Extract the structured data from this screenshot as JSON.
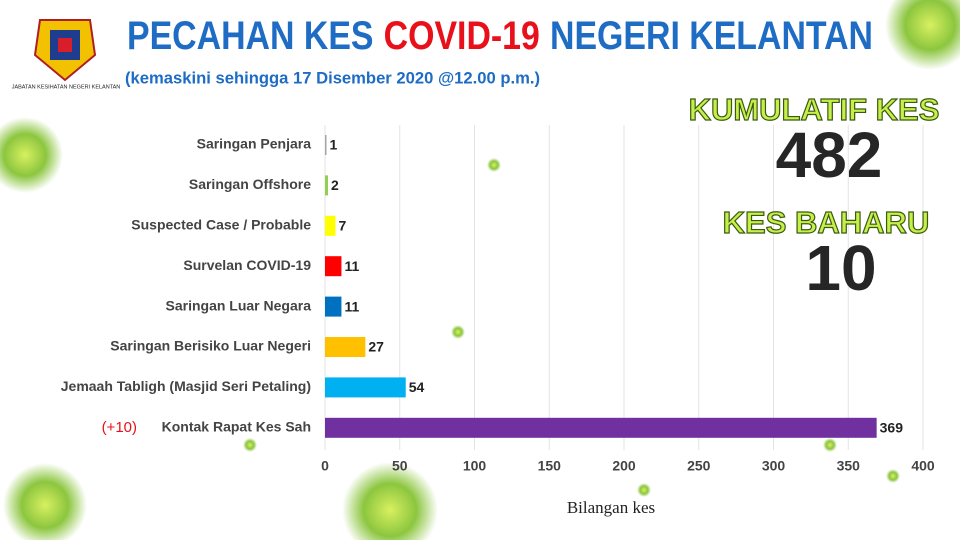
{
  "chart_data": {
    "type": "bar",
    "orientation": "horizontal",
    "title_parts": [
      "PECAHAN KES",
      "COVID-19",
      "NEGERI KELANTAN"
    ],
    "title_colors": [
      "#1e6cc4",
      "#e8101a",
      "#1e6cc4"
    ],
    "subtitle": "(kemaskini sehingga 17 Disember 2020 @12.00 p.m.)",
    "logo_text": "JABATAN KESIHATAN NEGERI KELANTAN",
    "categories": [
      "Saringan Penjara",
      "Saringan Offshore",
      "Suspected Case / Probable",
      "Survelan COVID-19",
      "Saringan Luar Negara",
      "Saringan Berisiko Luar Negeri",
      "Jemaah Tabligh (Masjid Seri Petaling)",
      "Kontak Rapat Kes Sah"
    ],
    "values": [
      1,
      2,
      7,
      11,
      11,
      27,
      54,
      369
    ],
    "colors": [
      "#a6a6a6",
      "#92d050",
      "#ffff00",
      "#ff0000",
      "#0070c0",
      "#ffc000",
      "#00b0f0",
      "#7030a0"
    ],
    "annotation": "(+10)",
    "xlabel": "Bilangan kes",
    "xlim": [
      0,
      400
    ],
    "xticks": [
      0,
      50,
      100,
      150,
      200,
      250,
      300,
      350,
      400
    ],
    "grid": true,
    "stats": [
      {
        "label": "KUMULATIF KES",
        "value": 482
      },
      {
        "label": "KES BAHARU",
        "value": 10
      }
    ]
  }
}
